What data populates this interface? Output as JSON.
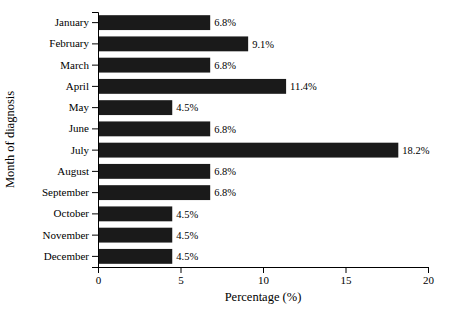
{
  "chart_data": {
    "type": "bar",
    "orientation": "horizontal",
    "categories": [
      "January",
      "February",
      "March",
      "April",
      "May",
      "June",
      "July",
      "August",
      "September",
      "October",
      "November",
      "December"
    ],
    "values": [
      6.8,
      9.1,
      6.8,
      11.4,
      4.5,
      6.8,
      18.2,
      6.8,
      6.8,
      4.5,
      4.5,
      4.5
    ],
    "value_labels": [
      "6.8%",
      "9.1%",
      "6.8%",
      "11.4%",
      "4.5%",
      "6.8%",
      "18.2%",
      "6.8%",
      "6.8%",
      "4.5%",
      "4.5%",
      "4.5%"
    ],
    "data_labels": true,
    "color": "#1a1a1a",
    "xlabel": "Percentage (%)",
    "ylabel": "Month of diagnosis",
    "xlim": [
      0,
      20
    ],
    "xticks": [
      0,
      5,
      10,
      15,
      20
    ],
    "grid": false
  }
}
